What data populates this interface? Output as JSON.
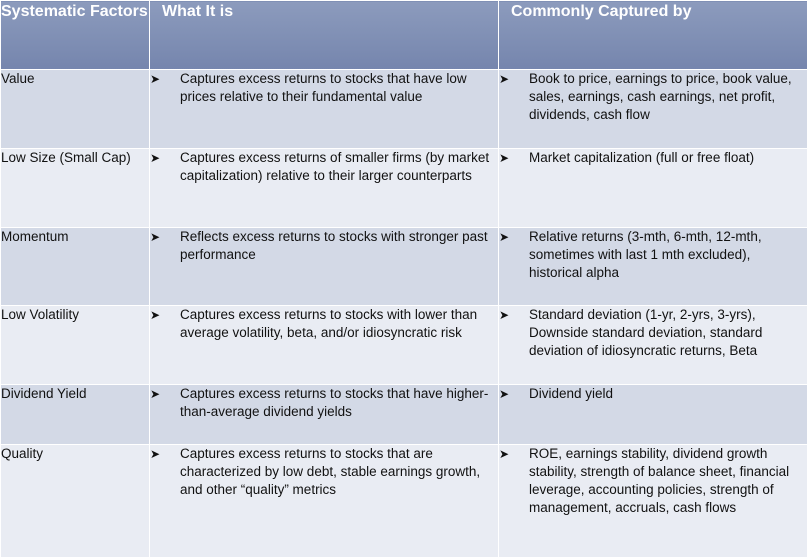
{
  "headers": {
    "factor": "Systematic Factors",
    "what": "What It is",
    "captured": "Commonly Captured by"
  },
  "bullet_glyph": "➤",
  "colors": {
    "header": "#7f8fb3",
    "row_dark": "#d3d9e6",
    "row_light": "#e9ecf3"
  },
  "rows": [
    {
      "factor": "Value",
      "what": "Captures excess returns to stocks that have low prices relative to their fundamental value",
      "captured": "Book to price, earnings to price, book value, sales, earnings, cash earnings, net profit, dividends, cash flow"
    },
    {
      "factor": "Low Size (Small Cap)",
      "what": "Captures excess returns of smaller firms (by market capitalization) relative to their larger counterparts",
      "captured": "Market capitalization (full or free float)"
    },
    {
      "factor": "Momentum",
      "what": "Reflects excess returns to stocks with stronger past performance",
      "captured": "Relative returns (3-mth, 6-mth, 12-mth, sometimes with last 1 mth excluded), historical alpha"
    },
    {
      "factor": "Low Volatility",
      "what": "Captures excess returns to stocks with lower than average volatility, beta, and/or idiosyncratic risk",
      "captured": "Standard deviation (1-yr, 2-yrs, 3-yrs), Downside standard deviation, standard deviation of idiosyncratic returns, Beta"
    },
    {
      "factor": "Dividend Yield",
      "what": "Captures excess returns to stocks that have higher-than-average dividend yields",
      "captured": "Dividend yield"
    },
    {
      "factor": "Quality",
      "what": "Captures excess returns to stocks that are characterized by low debt, stable earnings growth, and other “quality” metrics",
      "captured": "ROE, earnings stability, dividend growth stability, strength of balance sheet, financial leverage, accounting policies, strength of management, accruals, cash flows"
    }
  ]
}
